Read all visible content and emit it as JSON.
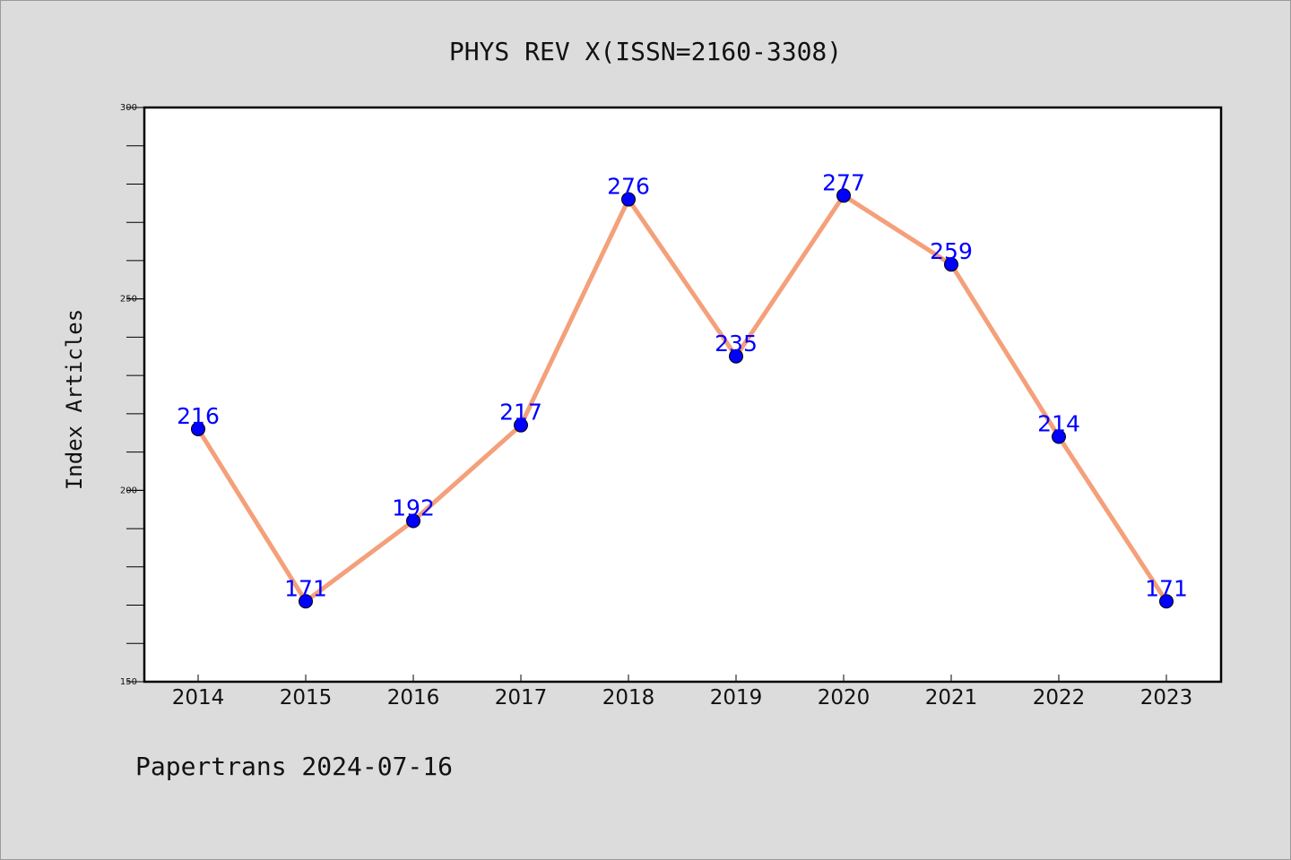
{
  "chart_data": {
    "type": "line",
    "title": "PHYS REV X(ISSN=2160-3308)",
    "xlabel": "",
    "ylabel": "Index Articles",
    "categories": [
      "2014",
      "2015",
      "2016",
      "2017",
      "2018",
      "2019",
      "2020",
      "2021",
      "2022",
      "2023"
    ],
    "values": [
      216,
      171,
      192,
      217,
      276,
      235,
      277,
      259,
      214,
      171
    ],
    "ylim": [
      150,
      300
    ],
    "yticks": [
      "150",
      "200",
      "250",
      "300"
    ],
    "grid": false,
    "line_color": "#f4a07a",
    "marker_color": "#0000ff",
    "label_color": "#0000ff",
    "background_color": "#dcdcdc",
    "plot_background": "#ffffff"
  },
  "footer": {
    "text": "Papertrans 2024-07-16"
  }
}
